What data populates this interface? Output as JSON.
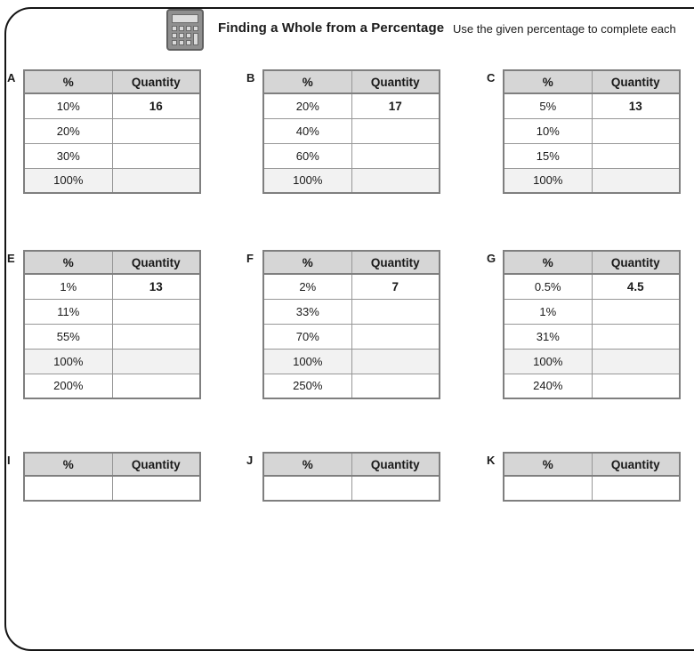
{
  "page": {
    "title": "Finding a Whole from a Percentage",
    "instruction": "Use the given percentage to complete each"
  },
  "icons": {
    "calculator": "calculator-icon"
  },
  "columns": {
    "pct": "%",
    "qty": "Quantity"
  },
  "colors": {
    "header_bg": "#d6d6d6",
    "shaded_row_bg": "#f2f2f2",
    "table_border": "#7f7f7f",
    "frame_border": "#141414",
    "calculator_body": "#8f8f8f"
  },
  "tables": [
    {
      "label": "A",
      "rows": [
        {
          "pct": "10%",
          "qty": "16"
        },
        {
          "pct": "20%",
          "qty": ""
        },
        {
          "pct": "30%",
          "qty": ""
        },
        {
          "pct": "100%",
          "qty": ""
        }
      ]
    },
    {
      "label": "B",
      "rows": [
        {
          "pct": "20%",
          "qty": "17"
        },
        {
          "pct": "40%",
          "qty": ""
        },
        {
          "pct": "60%",
          "qty": ""
        },
        {
          "pct": "100%",
          "qty": ""
        }
      ]
    },
    {
      "label": "C",
      "rows": [
        {
          "pct": "5%",
          "qty": "13"
        },
        {
          "pct": "10%",
          "qty": ""
        },
        {
          "pct": "15%",
          "qty": ""
        },
        {
          "pct": "100%",
          "qty": ""
        }
      ]
    },
    {
      "label": "E",
      "rows": [
        {
          "pct": "1%",
          "qty": "13"
        },
        {
          "pct": "11%",
          "qty": ""
        },
        {
          "pct": "55%",
          "qty": ""
        },
        {
          "pct": "100%",
          "qty": ""
        },
        {
          "pct": "200%",
          "qty": ""
        }
      ]
    },
    {
      "label": "F",
      "rows": [
        {
          "pct": "2%",
          "qty": "7"
        },
        {
          "pct": "33%",
          "qty": ""
        },
        {
          "pct": "70%",
          "qty": ""
        },
        {
          "pct": "100%",
          "qty": ""
        },
        {
          "pct": "250%",
          "qty": ""
        }
      ]
    },
    {
      "label": "G",
      "rows": [
        {
          "pct": "0.5%",
          "qty": "4.5"
        },
        {
          "pct": "1%",
          "qty": ""
        },
        {
          "pct": "31%",
          "qty": ""
        },
        {
          "pct": "100%",
          "qty": ""
        },
        {
          "pct": "240%",
          "qty": ""
        }
      ]
    },
    {
      "label": "I",
      "rows": []
    },
    {
      "label": "J",
      "rows": []
    },
    {
      "label": "K",
      "rows": []
    }
  ]
}
